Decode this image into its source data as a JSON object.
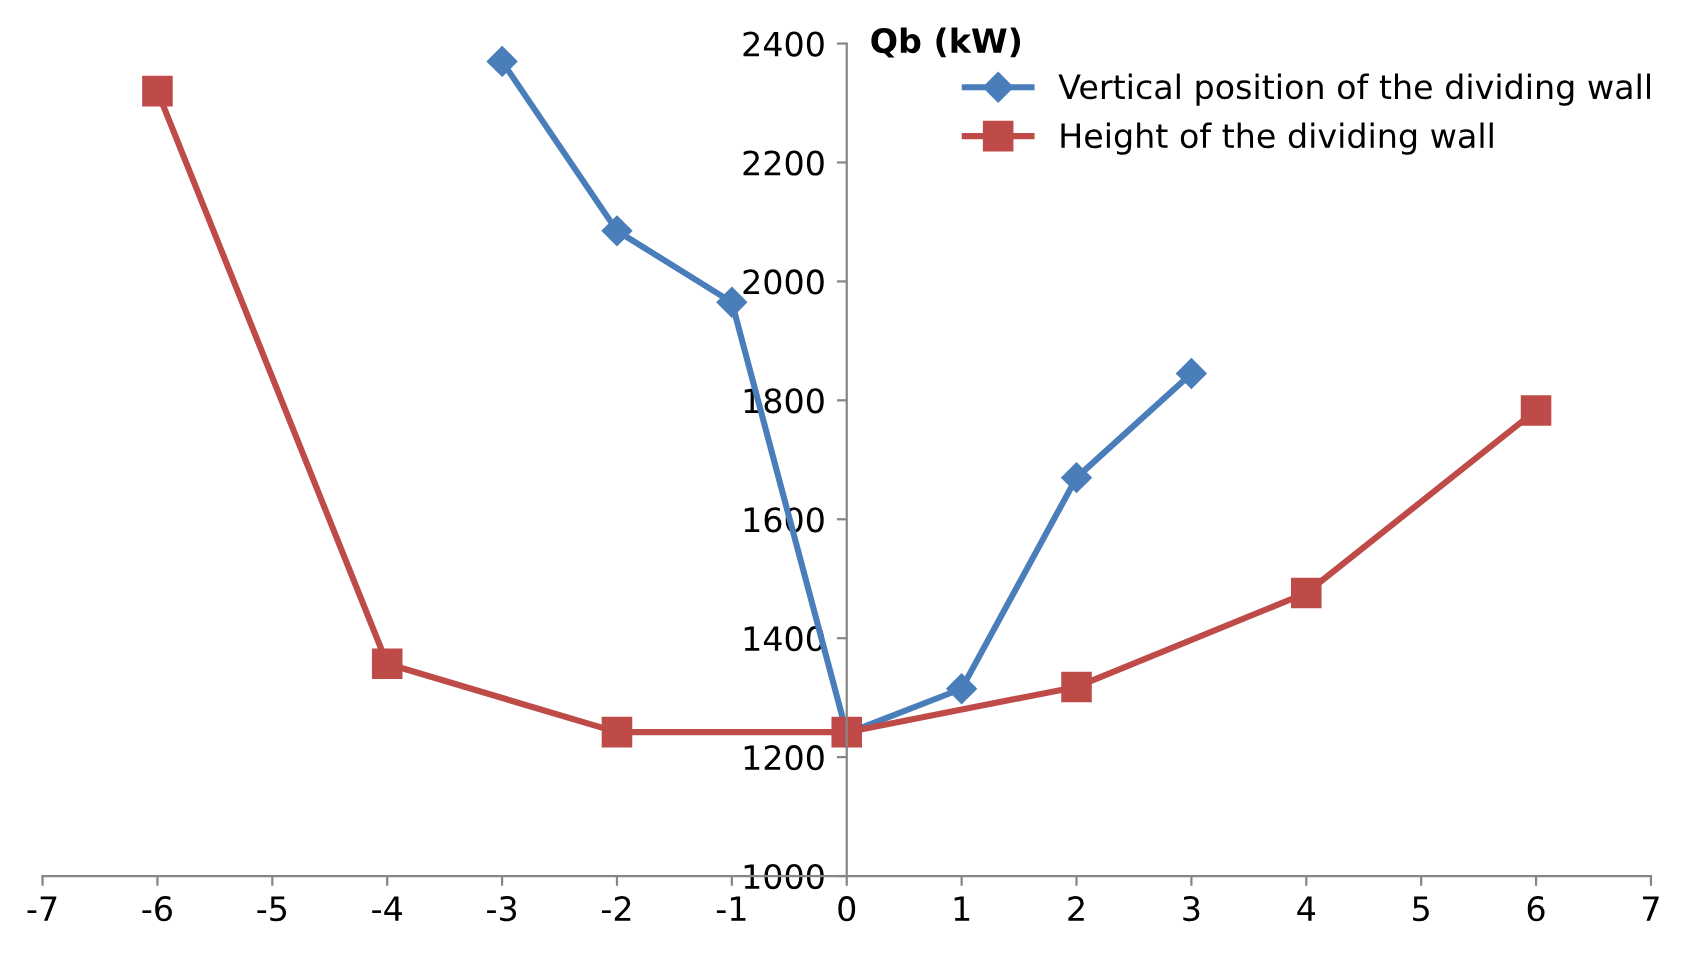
{
  "chart_data": {
    "type": "line",
    "ylabel": "Qb (kW)",
    "xlim": [
      -7,
      7
    ],
    "xticks": [
      -7,
      -6,
      -5,
      -4,
      -3,
      -2,
      -1,
      0,
      1,
      2,
      3,
      4,
      5,
      6,
      7
    ],
    "ylim": [
      1000,
      2400
    ],
    "yticks": [
      1000,
      1200,
      1400,
      1600,
      1800,
      2000,
      2200,
      2400
    ],
    "grid": false,
    "legend": "top right",
    "series": [
      {
        "name": "Vertical position of the dividing wall",
        "color": "#4a7ebb",
        "marker": "diamond",
        "x": [
          -3,
          -2,
          -1,
          0,
          1,
          2,
          3
        ],
        "values": [
          2370,
          2085,
          1965,
          1240,
          1315,
          1670,
          1845
        ]
      },
      {
        "name": "Height of the dividing wall",
        "color": "#be4b48",
        "marker": "square",
        "x": [
          -6,
          -4,
          -2,
          0,
          2,
          4,
          6
        ],
        "values": [
          2320,
          1357,
          1242,
          1242,
          1318,
          1476,
          1783
        ]
      }
    ]
  }
}
